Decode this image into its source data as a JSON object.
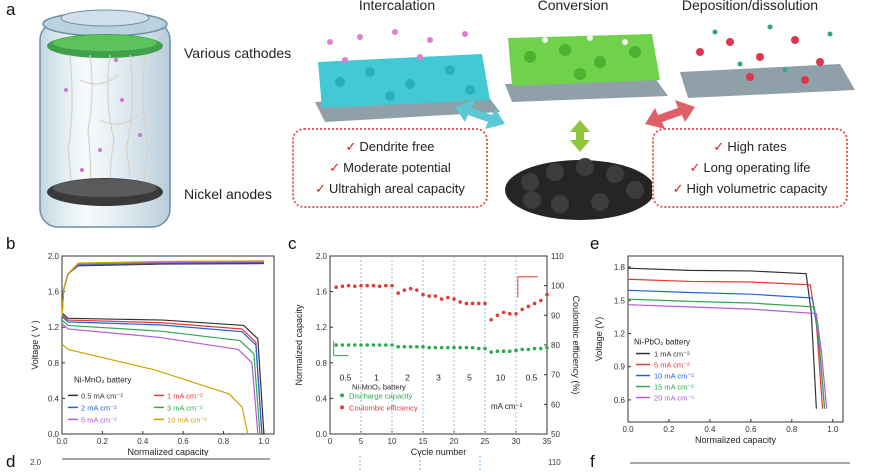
{
  "panel_labels": {
    "a": "a",
    "b": "b",
    "c": "c",
    "d": "d",
    "e": "e",
    "f": "f"
  },
  "schematic": {
    "cathodes_label": "Various cathodes",
    "anodes_label": "Nickel anodes",
    "stages": [
      "Intercalation",
      "Conversion",
      "Deposition/dissolution"
    ],
    "left_features": [
      "Dendrite free",
      "Moderate potential",
      "Ultrahigh areal capacity"
    ],
    "right_features": [
      "High rates",
      "Long operating life",
      "High volumetric capacity"
    ],
    "colors": {
      "intercalation": "#3fc9d6",
      "conversion": "#6fd24a",
      "deposition": "#8aa1ab",
      "anode": "#2b2b2b",
      "box_border": "#e05a5a",
      "check": "#d12020"
    }
  },
  "chart_data": [
    {
      "type": "line",
      "panel": "b",
      "xlabel": "Normalized capacity",
      "ylabel": "Voltage ( V )",
      "xlim": [
        0,
        1.05
      ],
      "ylim": [
        0.0,
        2.0
      ],
      "xticks": [
        "0.0",
        "0.2",
        "0.4",
        "0.6",
        "0.8",
        "1.0"
      ],
      "yticks": [
        "0.0",
        "0.4",
        "0.8",
        "1.2",
        "1.6",
        "2.0"
      ],
      "annotation": "Ni-MnO₂ battery",
      "legend": [
        "0.5 mA cm⁻²",
        "1 mA cm⁻²",
        "2 mA cm⁻²",
        "3 mA cm⁻²",
        "5 mA cm⁻²",
        "10 mA cm⁻²"
      ],
      "series": [
        {
          "name": "0.5 mA cm⁻²",
          "color": "#333333",
          "charge": 1.91,
          "discharge_plateau": [
            1.3,
            1.22
          ],
          "end_x": 1.0
        },
        {
          "name": "1 mA cm⁻²",
          "color": "#e53935",
          "charge": 1.92,
          "discharge_plateau": [
            1.28,
            1.18
          ],
          "end_x": 0.99
        },
        {
          "name": "2 mA cm⁻²",
          "color": "#1e63d8",
          "charge": 1.92,
          "discharge_plateau": [
            1.26,
            1.15
          ],
          "end_x": 0.99
        },
        {
          "name": "3 mA cm⁻²",
          "color": "#2fa84f",
          "charge": 1.93,
          "discharge_plateau": [
            1.22,
            1.05
          ],
          "end_x": 0.98
        },
        {
          "name": "5 mA cm⁻²",
          "color": "#b05cd6",
          "charge": 1.93,
          "discharge_plateau": [
            1.18,
            0.95
          ],
          "end_x": 0.97
        },
        {
          "name": "10 mA cm⁻²",
          "color": "#d1a300",
          "charge": 1.94,
          "discharge_plateau": [
            0.95,
            0.45
          ],
          "end_x": 0.92
        }
      ]
    },
    {
      "type": "scatter",
      "panel": "c",
      "xlabel": "Cycle number",
      "ylabel": "Normalized capacity",
      "y2label": "Coulombic efficiency (%)",
      "xlim": [
        0,
        35
      ],
      "ylim": [
        0.0,
        2.0
      ],
      "y2lim": [
        50,
        110
      ],
      "xticks": [
        "0",
        "5",
        "10",
        "15",
        "20",
        "25",
        "30",
        "35"
      ],
      "yticks": [
        "0.0",
        "0.4",
        "0.8",
        "1.2",
        "1.6",
        "2.0"
      ],
      "y2ticks": [
        "50",
        "60",
        "70",
        "80",
        "90",
        "100",
        "110"
      ],
      "annotation": "Ni-MnO₂ battery",
      "unit_label": "mA cm⁻²",
      "rate_labels": [
        "0.5",
        "1",
        "2",
        "3",
        "5",
        "10",
        "0.5"
      ],
      "rate_boundaries": [
        5,
        10,
        15,
        20,
        25,
        30
      ],
      "series": [
        {
          "name": "Discharge capacity",
          "color": "#2fa84f",
          "axis": "left",
          "x": [
            1,
            2,
            3,
            4,
            5,
            6,
            7,
            8,
            9,
            10,
            11,
            12,
            13,
            14,
            15,
            16,
            17,
            18,
            19,
            20,
            21,
            22,
            23,
            24,
            25,
            26,
            27,
            28,
            29,
            30,
            31,
            32,
            33,
            34,
            35
          ],
          "y": [
            1.0,
            1.0,
            1.0,
            1.0,
            1.0,
            1.0,
            1.0,
            1.0,
            1.0,
            1.0,
            0.98,
            0.98,
            0.98,
            0.98,
            0.98,
            0.97,
            0.97,
            0.97,
            0.97,
            0.97,
            0.97,
            0.97,
            0.97,
            0.96,
            0.96,
            0.92,
            0.93,
            0.93,
            0.93,
            0.94,
            0.95,
            0.95,
            0.96,
            0.96,
            0.97
          ]
        },
        {
          "name": "Coulombic efficiency",
          "color": "#e53935",
          "axis": "right",
          "x": [
            1,
            2,
            3,
            4,
            5,
            6,
            7,
            8,
            9,
            10,
            11,
            12,
            13,
            14,
            15,
            16,
            17,
            18,
            19,
            20,
            21,
            22,
            23,
            24,
            25,
            26,
            27,
            28,
            29,
            30,
            31,
            32,
            33,
            34,
            35
          ],
          "y": [
            99.5,
            99.8,
            100.0,
            99.8,
            100.0,
            100.0,
            100.0,
            99.8,
            100.0,
            100.0,
            97.5,
            98.5,
            99.0,
            98.5,
            97.0,
            96.5,
            96.5,
            95.5,
            96.0,
            95.5,
            94.5,
            94.0,
            94.0,
            94.0,
            94.0,
            88.5,
            90.0,
            91.0,
            90.5,
            90.5,
            92.0,
            93.0,
            94.0,
            95.0,
            97.0
          ]
        }
      ]
    },
    {
      "type": "line",
      "panel": "e",
      "xlabel": "Normalized capacity",
      "ylabel": "Voltage (V)",
      "xlim": [
        0,
        1.05
      ],
      "ylim": [
        0.4,
        1.9
      ],
      "xticks": [
        "0.0",
        "0.2",
        "0.4",
        "0.6",
        "0.8",
        "1.0"
      ],
      "yticks": [
        "0.6",
        "0.9",
        "1.2",
        "1.5",
        "1.8"
      ],
      "annotation": "Ni-PbO₂ battery",
      "legend": [
        "1 mA cm⁻²",
        "5 mA cm⁻²",
        "10 mA cm⁻²",
        "15 mA cm⁻²",
        "20 mA cm⁻²"
      ],
      "series": [
        {
          "name": "1 mA cm⁻²",
          "color": "#333333",
          "plateau": [
            1.79,
            1.74
          ],
          "knee": 0.87,
          "end_x": 0.92
        },
        {
          "name": "5 mA cm⁻²",
          "color": "#e53935",
          "plateau": [
            1.69,
            1.64
          ],
          "knee": 0.89,
          "end_x": 0.95
        },
        {
          "name": "10 mA cm⁻²",
          "color": "#1e63d8",
          "plateau": [
            1.59,
            1.52
          ],
          "knee": 0.9,
          "end_x": 0.96
        },
        {
          "name": "15 mA cm⁻²",
          "color": "#2fa84f",
          "plateau": [
            1.51,
            1.44
          ],
          "knee": 0.91,
          "end_x": 0.96
        },
        {
          "name": "20 mA cm⁻²",
          "color": "#b05cd6",
          "plateau": [
            1.46,
            1.38
          ],
          "knee": 0.92,
          "end_x": 0.97
        }
      ]
    },
    {
      "type": "line",
      "panel": "d",
      "visible_tick_labels": [
        "2.0",
        "110"
      ]
    }
  ]
}
